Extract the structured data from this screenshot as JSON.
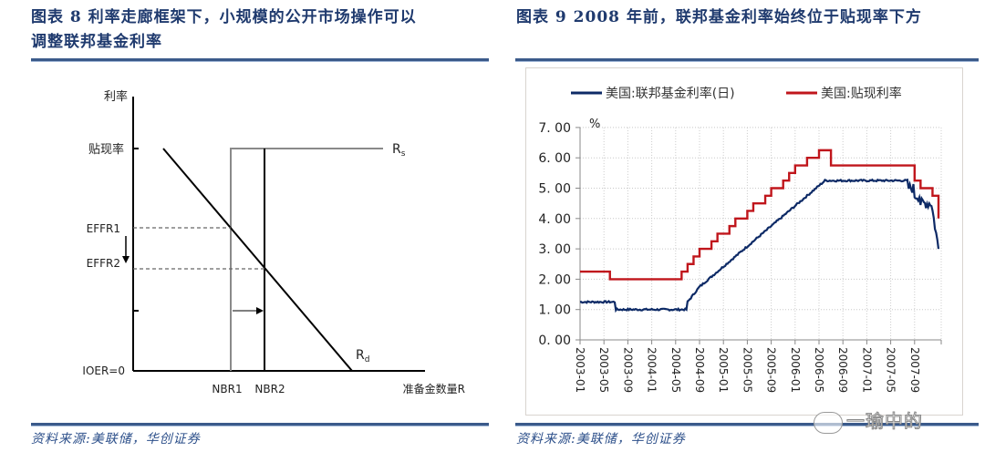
{
  "left_figure": {
    "title_line1": "图表 8   利率走廊框架下，小规模的公开市场操作可以",
    "title_line2": "调整联邦基金利率",
    "source": "资料来源:美联储，华创证券",
    "diagram": {
      "y_axis_label": "利率",
      "discount_rate_label": "贴现率",
      "effr1_label": "EFFR1",
      "effr2_label": "EFFR2",
      "ioer_label": "IOER=0",
      "nbr1_label": "NBR1",
      "nbr2_label": "NBR2",
      "x_axis_label": "准备金数量R",
      "supply_label": "R",
      "supply_sub": "s",
      "demand_label": "R",
      "demand_sub": "d"
    }
  },
  "right_figure": {
    "title": "图表 9   2008 年前，联邦基金利率始终位于贴现率下方",
    "source": "资料来源:美联储，华创证券",
    "watermark": "一瑜中的"
  },
  "chart_data": [
    {
      "type": "diagram",
      "title": "利率走廊框架下，小规模的公开市场操作可以调整联邦基金利率",
      "xlabel": "准备金数量R",
      "ylabel": "利率",
      "y_ticks": [
        "贴现率",
        "EFFR1",
        "EFFR2",
        "IOER=0"
      ],
      "x_ticks": [
        "NBR1",
        "NBR2"
      ],
      "curves": [
        "Rs (reserve supply, vertical at NBR then flat at discount rate)",
        "Rd (reserve demand, downward sloping)"
      ],
      "annotations": [
        "arrow NBR1 → NBR2",
        "arrow EFFR1 ↓ EFFR2"
      ]
    },
    {
      "type": "line",
      "title": "2008 年前，联邦基金利率始终位于贴现率下方",
      "ylabel": "%",
      "ylim": [
        0,
        7
      ],
      "y_ticks": [
        "0.00",
        "1.00",
        "2.00",
        "3.00",
        "4.00",
        "5.00",
        "6.00",
        "7.00"
      ],
      "x_ticks": [
        "2003-01",
        "2003-05",
        "2003-09",
        "2004-01",
        "2004-05",
        "2004-09",
        "2005-01",
        "2005-05",
        "2005-09",
        "2006-01",
        "2006-05",
        "2006-09",
        "2007-01",
        "2007-05",
        "2007-09"
      ],
      "grid": true,
      "legend_position": "top",
      "series": [
        {
          "name": "美国:联邦基金利率(日)",
          "color": "#0d2a66",
          "x": [
            "2003-01",
            "2003-06",
            "2003-07",
            "2003-09",
            "2004-01",
            "2004-06",
            "2004-07",
            "2004-09",
            "2004-12",
            "2005-03",
            "2005-06",
            "2005-09",
            "2005-12",
            "2006-03",
            "2006-06",
            "2006-07",
            "2007-01",
            "2007-07",
            "2007-08",
            "2007-09",
            "2007-10",
            "2007-12",
            "2008-01"
          ],
          "values": [
            1.25,
            1.25,
            1.0,
            1.0,
            1.0,
            1.0,
            1.25,
            1.75,
            2.25,
            2.75,
            3.25,
            3.75,
            4.25,
            4.75,
            5.25,
            5.25,
            5.25,
            5.25,
            5.0,
            4.75,
            4.5,
            4.25,
            3.0
          ]
        },
        {
          "name": "美国:贴现利率",
          "color": "#c0161c",
          "x": [
            "2003-01",
            "2003-06",
            "2003-07",
            "2004-06",
            "2004-07",
            "2004-08",
            "2004-09",
            "2004-11",
            "2004-12",
            "2005-02",
            "2005-03",
            "2005-05",
            "2005-06",
            "2005-08",
            "2005-09",
            "2005-11",
            "2005-12",
            "2006-01",
            "2006-03",
            "2006-05",
            "2006-06",
            "2006-07",
            "2007-08",
            "2007-09",
            "2007-10",
            "2007-12",
            "2008-01"
          ],
          "values": [
            2.25,
            2.0,
            2.0,
            2.25,
            2.5,
            2.75,
            3.0,
            3.25,
            3.5,
            3.75,
            4.0,
            4.25,
            4.5,
            4.75,
            5.0,
            5.25,
            5.5,
            5.75,
            6.0,
            6.25,
            6.25,
            5.75,
            5.75,
            5.25,
            5.0,
            4.75,
            4.0
          ]
        }
      ]
    }
  ]
}
